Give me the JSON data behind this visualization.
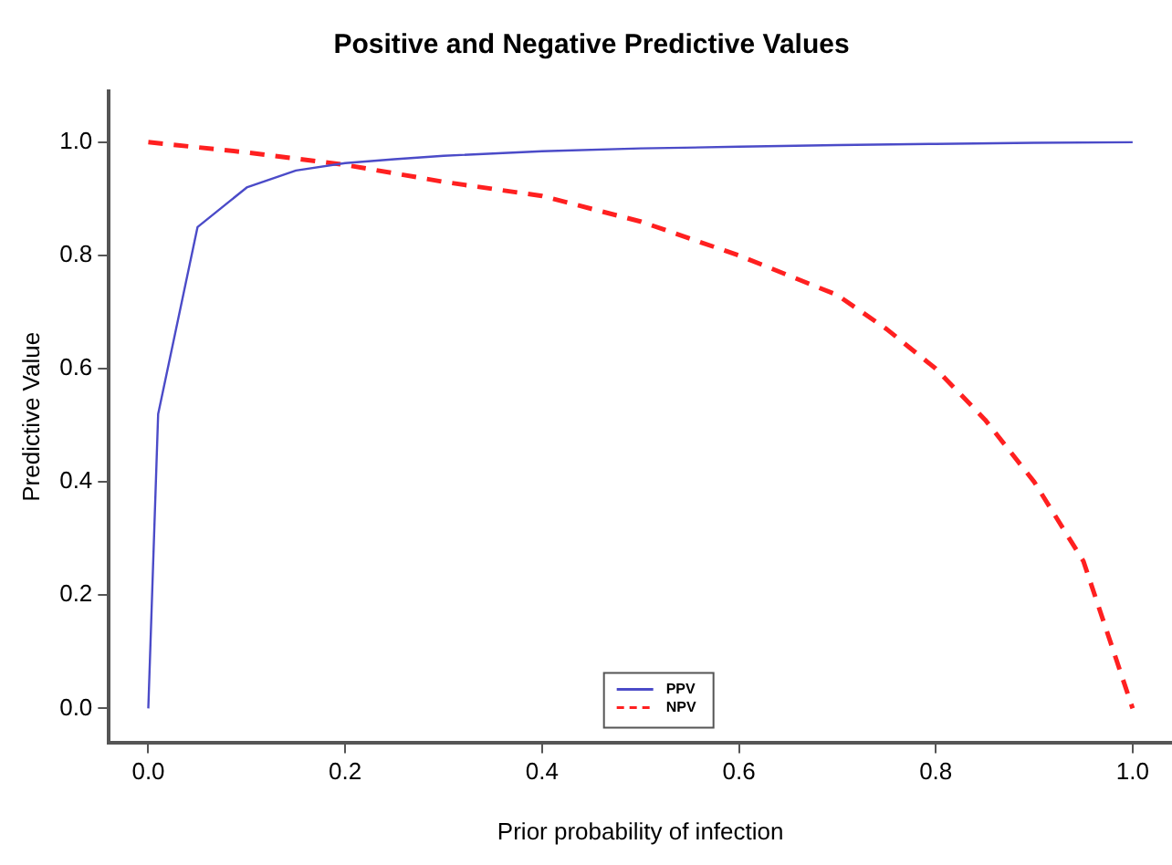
{
  "chart_data": {
    "type": "line",
    "title": "Positive and Negative Predictive Values",
    "xlabel": "Prior probability of infection",
    "ylabel": "Predictive Value",
    "xlim": [
      -0.04,
      1.04
    ],
    "ylim": [
      -0.06,
      1.09
    ],
    "xticks": [
      {
        "value": 0,
        "label": "0.0"
      },
      0.2,
      0.4,
      0.6,
      0.8,
      {
        "value": 1,
        "label": "1.0"
      }
    ],
    "yticks": [
      {
        "value": 0,
        "label": "0.0"
      },
      0.2,
      0.4,
      0.6,
      0.8,
      {
        "value": 1,
        "label": "1.0"
      }
    ],
    "grid": false,
    "legend": "bottom",
    "marker": "none",
    "series": [
      {
        "name": "PPV",
        "color": "#4b4bc8",
        "line_style": "solid",
        "x": [
          0,
          0.01,
          0.05,
          0.1,
          0.15,
          0.2,
          0.25,
          0.3,
          0.4,
          0.5,
          0.6,
          0.7,
          0.8,
          0.9,
          1
        ],
        "values": [
          0,
          0.52,
          0.85,
          0.92,
          0.95,
          0.963,
          0.97,
          0.976,
          0.984,
          0.989,
          0.992,
          0.995,
          0.997,
          0.999,
          1
        ]
      },
      {
        "name": "NPV",
        "color": "#ff2020",
        "line_style": "dashed",
        "x": [
          0,
          0.1,
          0.2,
          0.3,
          0.4,
          0.5,
          0.6,
          0.7,
          0.75,
          0.8,
          0.85,
          0.9,
          0.95,
          1
        ],
        "values": [
          1,
          0.982,
          0.96,
          0.93,
          0.905,
          0.86,
          0.8,
          0.73,
          0.67,
          0.6,
          0.51,
          0.4,
          0.26,
          0
        ]
      }
    ]
  }
}
